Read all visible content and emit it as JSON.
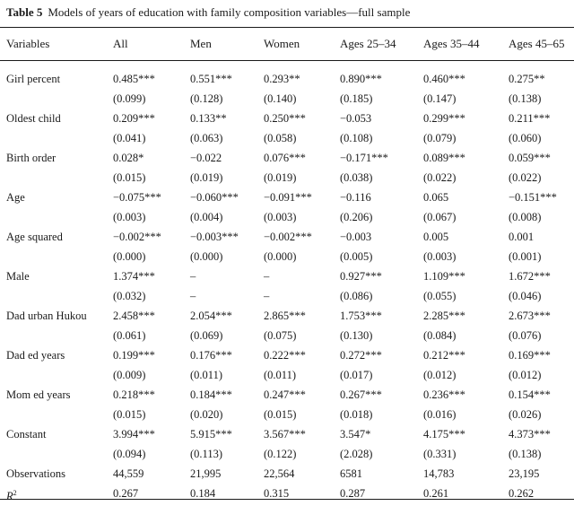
{
  "caption": {
    "label": "Table 5",
    "title": "Models of years of education with family composition variables—full sample"
  },
  "columns": [
    "Variables",
    "All",
    "Men",
    "Women",
    "Ages 25–34",
    "Ages 35–44",
    "Ages 45–65"
  ],
  "rows": [
    {
      "label": "Girl percent",
      "coef": [
        "0.485***",
        "0.551***",
        "0.293**",
        "0.890***",
        "0.460***",
        "0.275**"
      ],
      "se": [
        "(0.099)",
        "(0.128)",
        "(0.140)",
        "(0.185)",
        "(0.147)",
        "(0.138)"
      ]
    },
    {
      "label": "Oldest child",
      "coef": [
        "0.209***",
        "0.133**",
        "0.250***",
        "−0.053",
        "0.299***",
        "0.211***"
      ],
      "se": [
        "(0.041)",
        "(0.063)",
        "(0.058)",
        "(0.108)",
        "(0.079)",
        "(0.060)"
      ]
    },
    {
      "label": "Birth order",
      "coef": [
        "0.028*",
        "−0.022",
        "0.076***",
        "−0.171***",
        "0.089***",
        "0.059***"
      ],
      "se": [
        "(0.015)",
        "(0.019)",
        "(0.019)",
        "(0.038)",
        "(0.022)",
        "(0.022)"
      ]
    },
    {
      "label": "Age",
      "coef": [
        "−0.075***",
        "−0.060***",
        "−0.091***",
        "−0.116",
        "0.065",
        "−0.151***"
      ],
      "se": [
        "(0.003)",
        "(0.004)",
        "(0.003)",
        "(0.206)",
        "(0.067)",
        "(0.008)"
      ]
    },
    {
      "label": "Age squared",
      "coef": [
        "−0.002***",
        "−0.003***",
        "−0.002***",
        "−0.003",
        "0.005",
        "0.001"
      ],
      "se": [
        "(0.000)",
        "(0.000)",
        "(0.000)",
        "(0.005)",
        "(0.003)",
        "(0.001)"
      ]
    },
    {
      "label": "Male",
      "coef": [
        "1.374***",
        "–",
        "–",
        "0.927***",
        "1.109***",
        "1.672***"
      ],
      "se": [
        "(0.032)",
        "–",
        "–",
        "(0.086)",
        "(0.055)",
        "(0.046)"
      ]
    },
    {
      "label": "Dad urban Hukou",
      "coef": [
        "2.458***",
        "2.054***",
        "2.865***",
        "1.753***",
        "2.285***",
        "2.673***"
      ],
      "se": [
        "(0.061)",
        "(0.069)",
        "(0.075)",
        "(0.130)",
        "(0.084)",
        "(0.076)"
      ]
    },
    {
      "label": "Dad ed years",
      "coef": [
        "0.199***",
        "0.176***",
        "0.222***",
        "0.272***",
        "0.212***",
        "0.169***"
      ],
      "se": [
        "(0.009)",
        "(0.011)",
        "(0.011)",
        "(0.017)",
        "(0.012)",
        "(0.012)"
      ]
    },
    {
      "label": "Mom ed years",
      "coef": [
        "0.218***",
        "0.184***",
        "0.247***",
        "0.267***",
        "0.236***",
        "0.154***"
      ],
      "se": [
        "(0.015)",
        "(0.020)",
        "(0.015)",
        "(0.018)",
        "(0.016)",
        "(0.026)"
      ]
    },
    {
      "label": "Constant",
      "coef": [
        "3.994***",
        "5.915***",
        "3.567***",
        "3.547*",
        "4.175***",
        "4.373***"
      ],
      "se": [
        "(0.094)",
        "(0.113)",
        "(0.122)",
        "(2.028)",
        "(0.331)",
        "(0.138)"
      ]
    }
  ],
  "summary": [
    {
      "label": "Observations",
      "values": [
        "44,559",
        "21,995",
        "22,564",
        "6581",
        "14,783",
        "23,195"
      ]
    },
    {
      "label": "R",
      "sup": "2",
      "values": [
        "0.267",
        "0.184",
        "0.315",
        "0.287",
        "0.261",
        "0.262"
      ]
    }
  ]
}
